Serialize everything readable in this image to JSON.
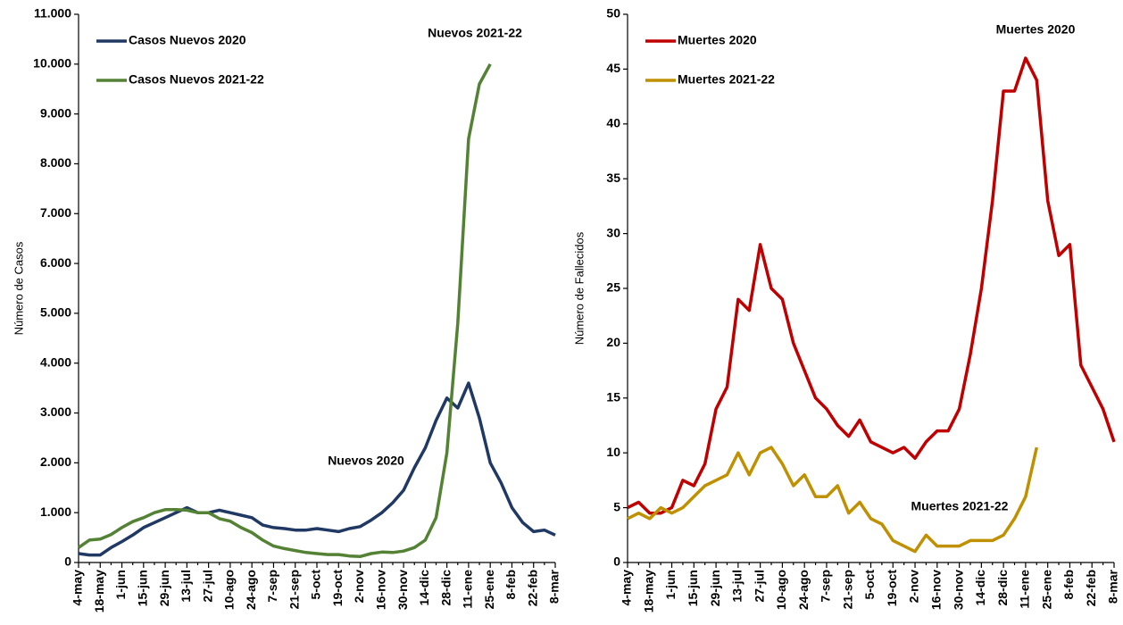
{
  "chart_data": [
    {
      "type": "line",
      "ylabel": "Número de Casos",
      "categories": [
        "4-may",
        null,
        "18-may",
        null,
        "1-jun",
        null,
        "15-jun",
        null,
        "29-jun",
        null,
        "13-jul",
        null,
        "27-jul",
        null,
        "10-ago",
        null,
        "24-ago",
        null,
        "7-sep",
        null,
        "21-sep",
        null,
        "5-oct",
        null,
        "19-oct",
        null,
        "2-nov",
        null,
        "16-nov",
        null,
        "30-nov",
        null,
        "14-dic",
        null,
        "28-dic",
        null,
        "11-ene",
        null,
        "25-ene",
        null,
        "8-feb",
        null,
        "22-feb",
        null,
        "8-mar"
      ],
      "series": [
        {
          "name": "Casos Nuevos 2020",
          "color": "#203864",
          "values": [
            180,
            150,
            150,
            300,
            420,
            550,
            700,
            800,
            900,
            1000,
            1100,
            1000,
            1000,
            1050,
            1000,
            950,
            900,
            750,
            700,
            680,
            650,
            650,
            680,
            650,
            620,
            680,
            720,
            850,
            1000,
            1200,
            1450,
            1900,
            2300,
            2850,
            3300,
            3100,
            3600,
            2900,
            2000,
            1600,
            1100,
            800,
            620,
            650,
            550
          ]
        },
        {
          "name": "Casos Nuevos 2021-22",
          "color": "#548235",
          "values": [
            300,
            450,
            470,
            560,
            700,
            820,
            900,
            1000,
            1060,
            1060,
            1050,
            1000,
            1000,
            880,
            830,
            700,
            600,
            450,
            330,
            280,
            240,
            200,
            180,
            160,
            160,
            130,
            120,
            180,
            210,
            200,
            230,
            300,
            450,
            900,
            2200,
            4800,
            8500,
            9600,
            10000,
            null,
            null,
            null,
            null,
            null,
            null
          ]
        }
      ],
      "annotations": [
        {
          "text": "Nuevos 2021-22",
          "color": "#548235"
        },
        {
          "text": "Nuevos 2020",
          "color": "#203864"
        }
      ],
      "ylim": [
        0,
        11000
      ],
      "yticks": [
        0,
        {
          "value": 1000,
          "label": "1.000"
        },
        {
          "value": 2000,
          "label": "2.000"
        },
        {
          "value": 3000,
          "label": "3.000"
        },
        {
          "value": 4000,
          "label": "4.000"
        },
        {
          "value": 5000,
          "label": "5.000"
        },
        {
          "value": 6000,
          "label": "6.000"
        },
        {
          "value": 7000,
          "label": "7.000"
        },
        {
          "value": 8000,
          "label": "8.000"
        },
        {
          "value": 9000,
          "label": "9.000"
        },
        {
          "value": 10000,
          "label": "10.000"
        },
        {
          "value": 11000,
          "label": "11.000"
        }
      ],
      "grid": false,
      "legend": "upper-left"
    },
    {
      "type": "line",
      "ylabel": "Número de Fallecidos",
      "categories": [
        "4-may",
        null,
        "18-may",
        null,
        "1-jun",
        null,
        "15-jun",
        null,
        "29-jun",
        null,
        "13-jul",
        null,
        "27-jul",
        null,
        "10-ago",
        null,
        "24-ago",
        null,
        "7-sep",
        null,
        "21-sep",
        null,
        "5-oct",
        null,
        "19-oct",
        null,
        "2-nov",
        null,
        "16-nov",
        null,
        "30-nov",
        null,
        "14-dic",
        null,
        "28-dic",
        null,
        "11-ene",
        null,
        "25-ene",
        null,
        "8-feb",
        null,
        "22-feb",
        null,
        "8-mar"
      ],
      "series": [
        {
          "name": "Muertes 2020",
          "color": "#c00000",
          "values": [
            5,
            5.5,
            4.5,
            4.5,
            5,
            7.5,
            7,
            9,
            14,
            16,
            24,
            23,
            29,
            25,
            24,
            20,
            17.5,
            15,
            14,
            12.5,
            11.5,
            13,
            11,
            10.5,
            10,
            10.5,
            9.5,
            11,
            12,
            12,
            14,
            19,
            25,
            33,
            43,
            43,
            46,
            44,
            33,
            28,
            29,
            18,
            16,
            14,
            11
          ]
        },
        {
          "name": "Muertes 2021-22",
          "color": "#bf9000",
          "values": [
            4,
            4.5,
            4,
            5,
            4.5,
            5,
            6,
            7,
            7.5,
            8,
            10,
            8,
            10,
            10.5,
            9,
            7,
            8,
            6,
            6,
            7,
            4.5,
            5.5,
            4,
            3.5,
            2,
            1.5,
            1,
            2.5,
            1.5,
            1.5,
            1.5,
            2,
            2,
            2,
            2.5,
            4,
            6,
            10.5,
            null,
            null,
            null,
            null,
            null,
            null,
            null
          ]
        }
      ],
      "annotations": [
        {
          "text": "Muertes 2020",
          "color": "#c00000"
        },
        {
          "text": "Muertes 2021-22",
          "color": "#bf9000"
        }
      ],
      "ylim": [
        0,
        50
      ],
      "yticks": [
        0,
        5,
        10,
        15,
        20,
        25,
        30,
        35,
        40,
        45,
        50
      ],
      "grid": false,
      "legend": "upper-left"
    }
  ]
}
